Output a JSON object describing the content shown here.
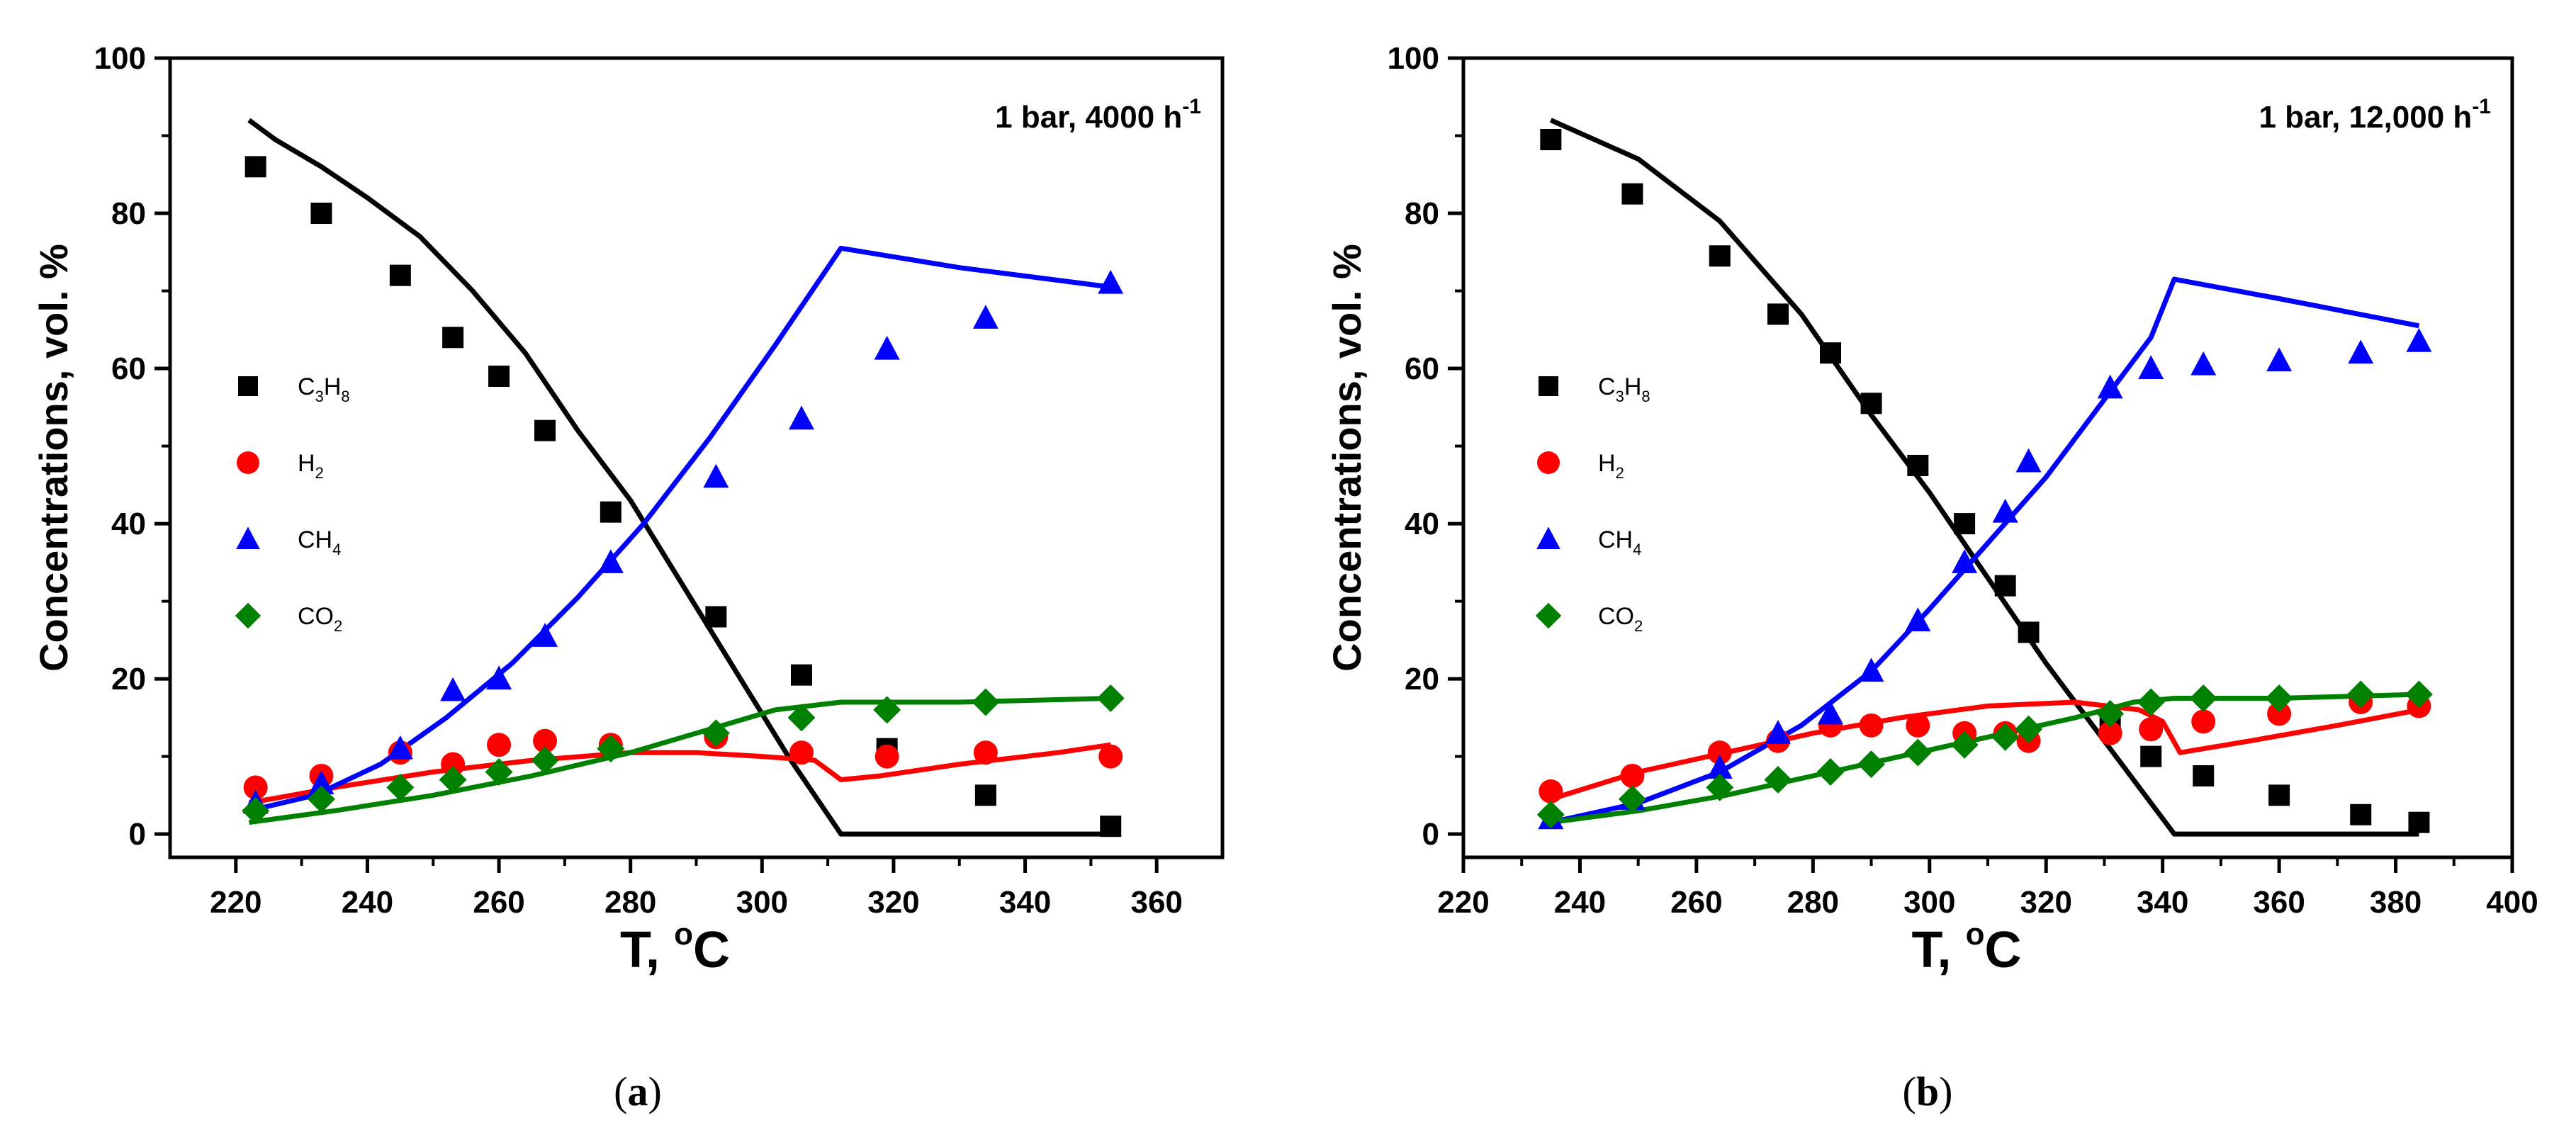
{
  "chart_data": [
    {
      "type": "scatter",
      "panel": "(a)",
      "caption": {
        "open": "(",
        "letter": "a",
        "close": ")"
      },
      "annotation": {
        "text": "1 bar, 4000 h",
        "sup": "-1"
      },
      "xlabel": {
        "text": "T, ",
        "sup": "o",
        "unit": "C"
      },
      "ylabel": "Concentrations, vol. %",
      "xlim": [
        210,
        370
      ],
      "ylim": [
        -3,
        100
      ],
      "xticks": [
        220,
        240,
        260,
        280,
        300,
        320,
        340,
        360
      ],
      "yticks": [
        0,
        20,
        40,
        60,
        80,
        100
      ],
      "legend_position": "center-left",
      "series": [
        {
          "key": "c3h8",
          "name": "C3H8",
          "label_main": "C",
          "label_sub1": "3",
          "label_mid": "H",
          "label_sub2": "8",
          "marker": "square",
          "color": "#000000",
          "points": [
            [
              223,
              86
            ],
            [
              233,
              80
            ],
            [
              245,
              72
            ],
            [
              253,
              64
            ],
            [
              260,
              59
            ],
            [
              267,
              52
            ],
            [
              277,
              41.5
            ],
            [
              293,
              28
            ],
            [
              306,
              20.5
            ],
            [
              319,
              11
            ],
            [
              334,
              5
            ],
            [
              353,
              1
            ]
          ],
          "model": [
            [
              222,
              92
            ],
            [
              226,
              89.5
            ],
            [
              233,
              86
            ],
            [
              240,
              82
            ],
            [
              248,
              77
            ],
            [
              256,
              70
            ],
            [
              264,
              62
            ],
            [
              272,
              52
            ],
            [
              280,
              43
            ],
            [
              288,
              32
            ],
            [
              296,
              21
            ],
            [
              304,
              10
            ],
            [
              312,
              0
            ],
            [
              353,
              0
            ]
          ]
        },
        {
          "key": "h2",
          "name": "H2",
          "label_main": "H",
          "label_sub1": "2",
          "label_mid": "",
          "label_sub2": "",
          "marker": "circle",
          "color": "#ff0000",
          "points": [
            [
              223,
              6
            ],
            [
              233,
              7.5
            ],
            [
              245,
              10.5
            ],
            [
              253,
              9
            ],
            [
              260,
              11.5
            ],
            [
              267,
              12
            ],
            [
              277,
              11.5
            ],
            [
              293,
              12.5
            ],
            [
              306,
              10.5
            ],
            [
              319,
              10
            ],
            [
              334,
              10.5
            ],
            [
              353,
              10
            ]
          ],
          "model": [
            [
              222,
              4
            ],
            [
              235,
              6
            ],
            [
              250,
              8
            ],
            [
              265,
              9.5
            ],
            [
              280,
              10.5
            ],
            [
              290,
              10.5
            ],
            [
              300,
              10
            ],
            [
              308,
              9.5
            ],
            [
              312,
              7
            ],
            [
              318,
              7.5
            ],
            [
              330,
              9
            ],
            [
              345,
              10.5
            ],
            [
              353,
              11.5
            ]
          ]
        },
        {
          "key": "ch4",
          "name": "CH4",
          "label_main": "CH",
          "label_sub1": "4",
          "label_mid": "",
          "label_sub2": "",
          "marker": "triangle",
          "color": "#0000ff",
          "points": [
            [
              223,
              4
            ],
            [
              233,
              6.5
            ],
            [
              245,
              11
            ],
            [
              253,
              18.5
            ],
            [
              260,
              20
            ],
            [
              267,
              25.5
            ],
            [
              277,
              35
            ],
            [
              293,
              46
            ],
            [
              306,
              53.5
            ],
            [
              319,
              62.5
            ],
            [
              334,
              66.5
            ],
            [
              353,
              71
            ]
          ],
          "model": [
            [
              222,
              3
            ],
            [
              232,
              5
            ],
            [
              242,
              9
            ],
            [
              252,
              15
            ],
            [
              262,
              22
            ],
            [
              272,
              30.5
            ],
            [
              282,
              40
            ],
            [
              292,
              51
            ],
            [
              302,
              63
            ],
            [
              312,
              75.5
            ],
            [
              330,
              73
            ],
            [
              353,
              70.5
            ]
          ]
        },
        {
          "key": "co2",
          "name": "CO2",
          "label_main": "CO",
          "label_sub1": "2",
          "label_mid": "",
          "label_sub2": "",
          "marker": "diamond",
          "color": "#008000",
          "points": [
            [
              223,
              3
            ],
            [
              233,
              4.5
            ],
            [
              245,
              6
            ],
            [
              253,
              7
            ],
            [
              260,
              8
            ],
            [
              267,
              9.5
            ],
            [
              277,
              11
            ],
            [
              293,
              13
            ],
            [
              306,
              15
            ],
            [
              319,
              16
            ],
            [
              334,
              17
            ],
            [
              353,
              17.5
            ]
          ],
          "model": [
            [
              222,
              1.5
            ],
            [
              235,
              3
            ],
            [
              250,
              5
            ],
            [
              265,
              7.5
            ],
            [
              280,
              10.5
            ],
            [
              292,
              13.5
            ],
            [
              302,
              16
            ],
            [
              312,
              17
            ],
            [
              330,
              17
            ],
            [
              353,
              17.5
            ]
          ]
        }
      ]
    },
    {
      "type": "scatter",
      "panel": "(b)",
      "caption": {
        "open": "(",
        "letter": "b",
        "close": ")"
      },
      "annotation": {
        "text": "1 bar, 12,000 h",
        "sup": "-1"
      },
      "xlabel": {
        "text": "T, ",
        "sup": "o",
        "unit": "C"
      },
      "ylabel": "Concentrations, vol. %",
      "xlim": [
        220,
        400
      ],
      "ylim": [
        -3,
        100
      ],
      "xticks": [
        220,
        240,
        260,
        280,
        300,
        320,
        340,
        360,
        380,
        400
      ],
      "yticks": [
        0,
        20,
        40,
        60,
        80,
        100
      ],
      "legend_position": "center-left",
      "series": [
        {
          "key": "c3h8",
          "name": "C3H8",
          "label_main": "C",
          "label_sub1": "3",
          "label_mid": "H",
          "label_sub2": "8",
          "marker": "square",
          "color": "#000000",
          "points": [
            [
              235,
              89.5
            ],
            [
              249,
              82.5
            ],
            [
              264,
              74.5
            ],
            [
              274,
              67
            ],
            [
              283,
              62
            ],
            [
              290,
              55.5
            ],
            [
              298,
              47.5
            ],
            [
              306,
              40
            ],
            [
              313,
              32
            ],
            [
              317,
              26
            ],
            [
              331,
              14
            ],
            [
              338,
              10
            ],
            [
              347,
              7.5
            ],
            [
              360,
              5
            ],
            [
              374,
              2.5
            ],
            [
              384,
              1.5
            ]
          ],
          "model": [
            [
              235,
              92
            ],
            [
              250,
              87
            ],
            [
              264,
              79
            ],
            [
              278,
              67
            ],
            [
              290,
              54
            ],
            [
              300,
              44
            ],
            [
              310,
              33
            ],
            [
              320,
              22
            ],
            [
              330,
              12
            ],
            [
              337,
              5
            ],
            [
              342,
              0
            ],
            [
              384,
              0
            ]
          ]
        },
        {
          "key": "h2",
          "name": "H2",
          "label_main": "H",
          "label_sub1": "2",
          "label_mid": "",
          "label_sub2": "",
          "marker": "circle",
          "color": "#ff0000",
          "points": [
            [
              235,
              5.5
            ],
            [
              249,
              7.5
            ],
            [
              264,
              10.5
            ],
            [
              274,
              12
            ],
            [
              283,
              14
            ],
            [
              290,
              14
            ],
            [
              298,
              14
            ],
            [
              306,
              13
            ],
            [
              313,
              13
            ],
            [
              317,
              12
            ],
            [
              331,
              13
            ],
            [
              338,
              13.5
            ],
            [
              347,
              14.5
            ],
            [
              360,
              15.5
            ],
            [
              374,
              17
            ],
            [
              384,
              16.5
            ]
          ],
          "model": [
            [
              235,
              4.5
            ],
            [
              250,
              8
            ],
            [
              265,
              10.5
            ],
            [
              280,
              13
            ],
            [
              295,
              15
            ],
            [
              310,
              16.5
            ],
            [
              325,
              17
            ],
            [
              336,
              16
            ],
            [
              340,
              14.5
            ],
            [
              343,
              10.5
            ],
            [
              355,
              12
            ],
            [
              370,
              14
            ],
            [
              384,
              16
            ]
          ]
        },
        {
          "key": "ch4",
          "name": "CH4",
          "label_main": "CH",
          "label_sub1": "4",
          "label_mid": "",
          "label_sub2": "",
          "marker": "triangle",
          "color": "#0000ff",
          "points": [
            [
              235,
              2
            ],
            [
              249,
              4.5
            ],
            [
              264,
              8.5
            ],
            [
              274,
              13
            ],
            [
              283,
              15.5
            ],
            [
              290,
              21
            ],
            [
              298,
              27.5
            ],
            [
              306,
              35
            ],
            [
              313,
              41.5
            ],
            [
              317,
              48
            ],
            [
              331,
              57.5
            ],
            [
              338,
              60
            ],
            [
              347,
              60.5
            ],
            [
              360,
              61
            ],
            [
              374,
              62
            ],
            [
              384,
              63.5
            ]
          ],
          "model": [
            [
              235,
              1.5
            ],
            [
              250,
              4
            ],
            [
              264,
              8
            ],
            [
              278,
              14
            ],
            [
              290,
              21
            ],
            [
              300,
              29
            ],
            [
              310,
              37.5
            ],
            [
              320,
              46
            ],
            [
              330,
              56
            ],
            [
              338,
              64
            ],
            [
              342,
              71.5
            ],
            [
              360,
              69
            ],
            [
              384,
              65.5
            ]
          ]
        },
        {
          "key": "co2",
          "name": "CO2",
          "label_main": "CO",
          "label_sub1": "2",
          "label_mid": "",
          "label_sub2": "",
          "marker": "diamond",
          "color": "#008000",
          "points": [
            [
              235,
              2.5
            ],
            [
              249,
              4.5
            ],
            [
              264,
              6
            ],
            [
              274,
              7
            ],
            [
              283,
              8
            ],
            [
              290,
              9
            ],
            [
              298,
              10.5
            ],
            [
              306,
              11.5
            ],
            [
              313,
              12.5
            ],
            [
              317,
              13.5
            ],
            [
              331,
              15.5
            ],
            [
              338,
              17
            ],
            [
              347,
              17.5
            ],
            [
              360,
              17.5
            ],
            [
              374,
              18
            ],
            [
              384,
              18
            ]
          ],
          "model": [
            [
              235,
              1.5
            ],
            [
              250,
              3
            ],
            [
              265,
              5
            ],
            [
              280,
              7.5
            ],
            [
              295,
              10
            ],
            [
              310,
              12.5
            ],
            [
              325,
              15
            ],
            [
              335,
              17
            ],
            [
              342,
              17.5
            ],
            [
              360,
              17.5
            ],
            [
              384,
              18
            ]
          ]
        }
      ]
    }
  ]
}
